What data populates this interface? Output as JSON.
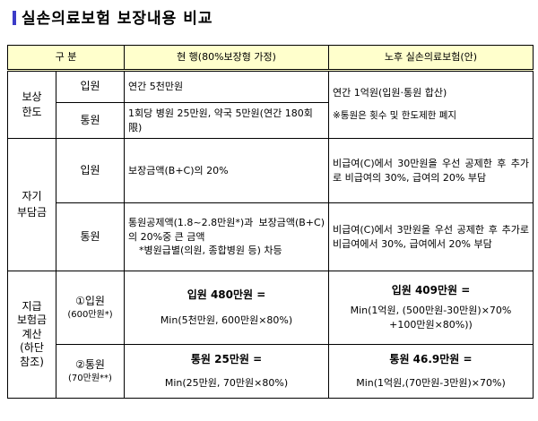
{
  "title": "실손의료보험 보장내용 비교",
  "header": {
    "col1": "구  분",
    "col2": "현  행(80%보장형 가정)",
    "col3": "노후 실손의료보험(안)"
  },
  "sections": {
    "limit": {
      "label": "보상\n한도",
      "inpatient_label": "입원",
      "inpatient_current": "연간 5천만원",
      "outpatient_label": "통원",
      "outpatient_current": "1회당 병원 25만원, 약국 5만원(연간 180회限)",
      "new_main": "연간 1억원(입원·통원 합산)",
      "new_note": "※통원은 횟수 및 한도제한 폐지"
    },
    "copay": {
      "label": "자기\n부담금",
      "inpatient_label": "입원",
      "inpatient_current": "보장금액(B+C)의 20%",
      "inpatient_new": "비급여(C)에서 30만원을 우선 공제한 후 추가로 비급여의 30%, 급여의 20% 부담",
      "outpatient_label": "통원",
      "outpatient_current_1": "통원공제액(1.8~2.8만원*)과 보장금액(B+C)의 20%중 큰 금액",
      "outpatient_current_2": "*병원급별(의원, 종합병원 등) 차등",
      "outpatient_new": "비급여(C)에서 3만원을 우선 공제한 후 추가로 비급여에서 30%, 급여에서 20% 부담"
    },
    "payout": {
      "label": "지급\n보험금\n계산\n(하단\n참조)",
      "inpatient_label": "①입원",
      "inpatient_sub": "(600만원*)",
      "inpatient_current_title": "입원 480만원 =",
      "inpatient_current_expr": "Min(5천만원, 600만원×80%)",
      "inpatient_new_title": "입원 409만원 =",
      "inpatient_new_expr_1": "Min(1억원, (500만원-30만원)×70%",
      "inpatient_new_expr_2": "+100만원×80%))",
      "outpatient_label": "②통원",
      "outpatient_sub": "(70만원**)",
      "outpatient_current_title": "통원 25만원 =",
      "outpatient_current_expr": "Min(25만원, 70만원×80%)",
      "outpatient_new_title": "통원 46.9만원 =",
      "outpatient_new_expr": "Min(1억원,(70만원-3만원)×70%)"
    }
  }
}
